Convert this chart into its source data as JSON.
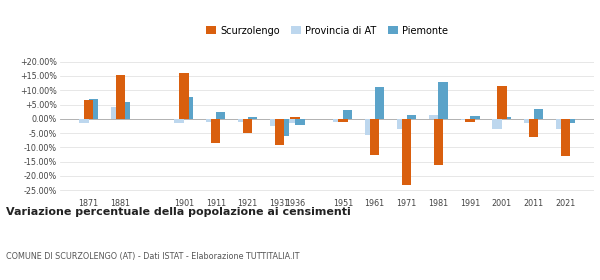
{
  "years": [
    1871,
    1881,
    1901,
    1911,
    1921,
    1931,
    1936,
    1951,
    1961,
    1971,
    1981,
    1991,
    2001,
    2011,
    2021
  ],
  "scurzolengo": [
    6.5,
    15.5,
    16.0,
    -8.5,
    -5.0,
    -9.0,
    0.5,
    -1.0,
    -12.5,
    -23.0,
    -16.0,
    -1.0,
    11.5,
    -6.5,
    -13.0
  ],
  "provincia_at": [
    -1.5,
    4.0,
    -1.5,
    -1.0,
    -1.0,
    -2.5,
    -1.5,
    -1.0,
    -5.5,
    -3.5,
    1.5,
    -0.5,
    -3.5,
    -1.5,
    -3.5
  ],
  "piemonte": [
    7.0,
    6.0,
    7.5,
    2.5,
    0.5,
    -6.0,
    -2.0,
    3.0,
    11.0,
    1.5,
    13.0,
    1.0,
    0.5,
    3.5,
    -1.5
  ],
  "color_scurzolengo": "#d95f0e",
  "color_provincia": "#bdd7ee",
  "color_piemonte": "#5ba3c9",
  "ylim_min": -27,
  "ylim_max": 22,
  "title": "Variazione percentuale della popolazione ai censimenti",
  "subtitle": "COMUNE DI SCURZOLENGO (AT) - Dati ISTAT - Elaborazione TUTTITALIA.IT",
  "legend_labels": [
    "Scurzolengo",
    "Provincia di AT",
    "Piemonte"
  ],
  "yticks": [
    -25.0,
    -20.0,
    -15.0,
    -10.0,
    -5.0,
    0.0,
    5.0,
    10.0,
    15.0,
    20.0
  ],
  "background_color": "#ffffff",
  "grid_color": "#dddddd",
  "xlim_min": 1862,
  "xlim_max": 2030
}
